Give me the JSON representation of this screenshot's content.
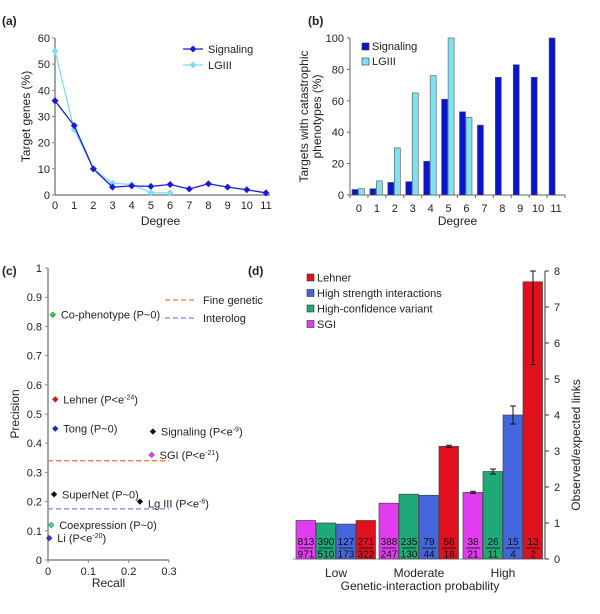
{
  "chart_data": [
    {
      "panel": "(a)",
      "type": "line",
      "xlabel": "Degree",
      "ylabel": "Target genes (%)",
      "x": [
        0,
        1,
        2,
        3,
        4,
        5,
        6,
        7,
        8,
        9,
        10,
        11
      ],
      "ylim": [
        0,
        60
      ],
      "yticks": [
        0,
        10,
        20,
        30,
        40,
        50,
        60
      ],
      "legend_position": "top-right",
      "series": [
        {
          "name": "Signaling",
          "color": "#1a1adb",
          "values": [
            36,
            26.5,
            10,
            3,
            3.5,
            3.3,
            4,
            2.3,
            4.3,
            3,
            2,
            0.8
          ]
        },
        {
          "name": "LGIII",
          "color": "#7fdcf5",
          "values": [
            55,
            25,
            10,
            4.5,
            4,
            0.8,
            0.8,
            null,
            null,
            null,
            null,
            null
          ]
        }
      ]
    },
    {
      "panel": "(b)",
      "type": "bar",
      "xlabel": "Degree",
      "ylabel": [
        "Targets with catastrophic",
        "phenotypes (%)"
      ],
      "categories": [
        "0",
        "1",
        "2",
        "3",
        "4",
        "5",
        "6",
        "7",
        "8",
        "9",
        "10",
        "11"
      ],
      "ylim": [
        0,
        100
      ],
      "yticks": [
        0,
        20,
        40,
        60,
        80,
        100
      ],
      "legend_position": "top-left",
      "series": [
        {
          "name": "Signaling",
          "color": "#0a14c8",
          "values": [
            3.5,
            4,
            8,
            8.5,
            21.5,
            61,
            53,
            44.5,
            75,
            83,
            75,
            100
          ]
        },
        {
          "name": "LGIII",
          "color": "#7ee2f2",
          "values": [
            4,
            9,
            30,
            65,
            76,
            100,
            49.5,
            null,
            null,
            null,
            null,
            null
          ]
        }
      ]
    },
    {
      "panel": "(c)",
      "type": "scatter",
      "xlabel": "Recall",
      "ylabel": "Precision",
      "xlim": [
        0,
        0.3
      ],
      "ylim": [
        0,
        1
      ],
      "xticks": [
        "0",
        "0.1",
        "0.2",
        "0.3"
      ],
      "yticks": [
        "0",
        "0.1",
        "0.2",
        "0.3",
        "0.4",
        "0.5",
        "0.6",
        "0.7",
        "0.8",
        "0.9",
        "1"
      ],
      "reference_lines": [
        {
          "name": "Fine genetic",
          "y": 0.34,
          "color": "#ff6a3d"
        },
        {
          "name": "Interolog",
          "y": 0.175,
          "color": "#8a7cf0"
        }
      ],
      "points": [
        {
          "label": "Co-phenotype (P~0)",
          "sup": "",
          "suffix": "",
          "x": 0.012,
          "y": 0.84,
          "color": "#33cc44"
        },
        {
          "label": "Lehner (P<e",
          "sup": "-24",
          "suffix": ")",
          "x": 0.018,
          "y": 0.55,
          "color": "#e01818"
        },
        {
          "label": "Tong (P~0)",
          "sup": "",
          "suffix": "",
          "x": 0.018,
          "y": 0.45,
          "color": "#1a2ad8"
        },
        {
          "label": "Signaling (P<e",
          "sup": "-9",
          "suffix": ")",
          "x": 0.26,
          "y": 0.44,
          "color": "#111111"
        },
        {
          "label": "SGI (P<e",
          "sup": "-21",
          "suffix": ")",
          "x": 0.257,
          "y": 0.36,
          "color": "#e040e8"
        },
        {
          "label": "SuperNet (P~0)",
          "sup": "",
          "suffix": "",
          "x": 0.015,
          "y": 0.225,
          "color": "#111111"
        },
        {
          "label": "Lg III (P<e",
          "sup": "-6",
          "suffix": ")",
          "x": 0.228,
          "y": 0.2,
          "color": "#111111"
        },
        {
          "label": "Coexpression (P~0)",
          "sup": "",
          "suffix": "",
          "x": 0.008,
          "y": 0.12,
          "color": "#33d8a8"
        },
        {
          "label": "Li (P<e",
          "sup": "-20",
          "suffix": ")",
          "x": 0.003,
          "y": 0.075,
          "color": "#4a2ae0"
        }
      ]
    },
    {
      "panel": "(d)",
      "type": "bar",
      "xlabel": "Genetic-interaction probability",
      "ylabel": "Observed/expected links",
      "categories": [
        "Low",
        "Moderate",
        "High"
      ],
      "ylim": [
        0,
        8
      ],
      "yticks": [
        "0",
        "1",
        "2",
        "3",
        "4",
        "5",
        "6",
        "7",
        "8"
      ],
      "legend_position": "top-left",
      "series": [
        {
          "name": "SGI",
          "color": "#e23cf0",
          "values": [
            1.07,
            1.55,
            1.85
          ],
          "err": [
            0,
            0,
            0.03
          ],
          "num": [
            "813",
            "388",
            "38"
          ],
          "den": [
            "971",
            "247",
            "21"
          ]
        },
        {
          "name": "High-confidence variant",
          "color": "#1fa878",
          "values": [
            1.0,
            1.8,
            2.43
          ],
          "err": [
            0,
            0,
            0.07
          ],
          "num": [
            "390",
            "235",
            "26"
          ],
          "den": [
            "510",
            "130",
            "11"
          ]
        },
        {
          "name": "High strength interactions",
          "color": "#4466dd",
          "values": [
            0.97,
            1.77,
            4.0
          ],
          "err": [
            0,
            0,
            0.25
          ],
          "num": [
            "127",
            "79",
            "15"
          ],
          "den": [
            "173",
            "44",
            "4"
          ]
        },
        {
          "name": "Lehner",
          "color": "#e0101e",
          "values": [
            1.07,
            3.13,
            7.7
          ],
          "err": [
            0,
            0.03,
            2.3
          ],
          "num": [
            "271",
            "58",
            "13"
          ],
          "den": [
            "322",
            "18",
            "2"
          ]
        }
      ],
      "legend_order": [
        "Lehner",
        "High strength interactions",
        "High-confidence variant",
        "SGI"
      ]
    }
  ]
}
